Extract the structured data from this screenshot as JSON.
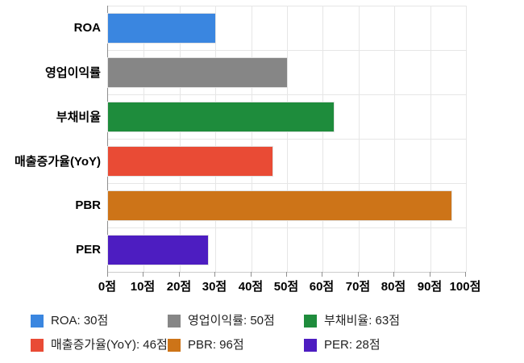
{
  "chart_data": {
    "type": "bar",
    "orientation": "horizontal",
    "title": "",
    "unit": "점",
    "categories": [
      "ROA",
      "영업이익률",
      "부채비율",
      "매출증가율(YoY)",
      "PBR",
      "PER"
    ],
    "values": [
      30,
      50,
      63,
      46,
      96,
      28
    ],
    "colors": [
      "#3A86E0",
      "#868686",
      "#1E8C3C",
      "#E94B35",
      "#CD7418",
      "#4D1DC1"
    ],
    "xlim": [
      0,
      100
    ],
    "x_tick_values": [
      0,
      10,
      20,
      30,
      40,
      50,
      60,
      70,
      80,
      90,
      100
    ],
    "x_tick_labels": [
      "0점",
      "10점",
      "20점",
      "30점",
      "40점",
      "50점",
      "60점",
      "70점",
      "80점",
      "90점",
      "100점"
    ],
    "grid": true,
    "legend_position": "bottom",
    "legend_items": [
      {
        "label": "ROA: 30점",
        "color": "#3A86E0"
      },
      {
        "label": "영업이익률: 50점",
        "color": "#868686"
      },
      {
        "label": "부채비율: 63점",
        "color": "#1E8C3C"
      },
      {
        "label": "매출증가율(YoY): 46점",
        "color": "#E94B35"
      },
      {
        "label": "PBR: 96점",
        "color": "#CD7418"
      },
      {
        "label": "PER: 28점",
        "color": "#4D1DC1"
      }
    ],
    "axis_colors": {
      "axis_line": "#8f8f8f",
      "gridline": "#e6e6e6",
      "tick_text": "#000000",
      "legend_text": "#1f1f1f"
    }
  }
}
